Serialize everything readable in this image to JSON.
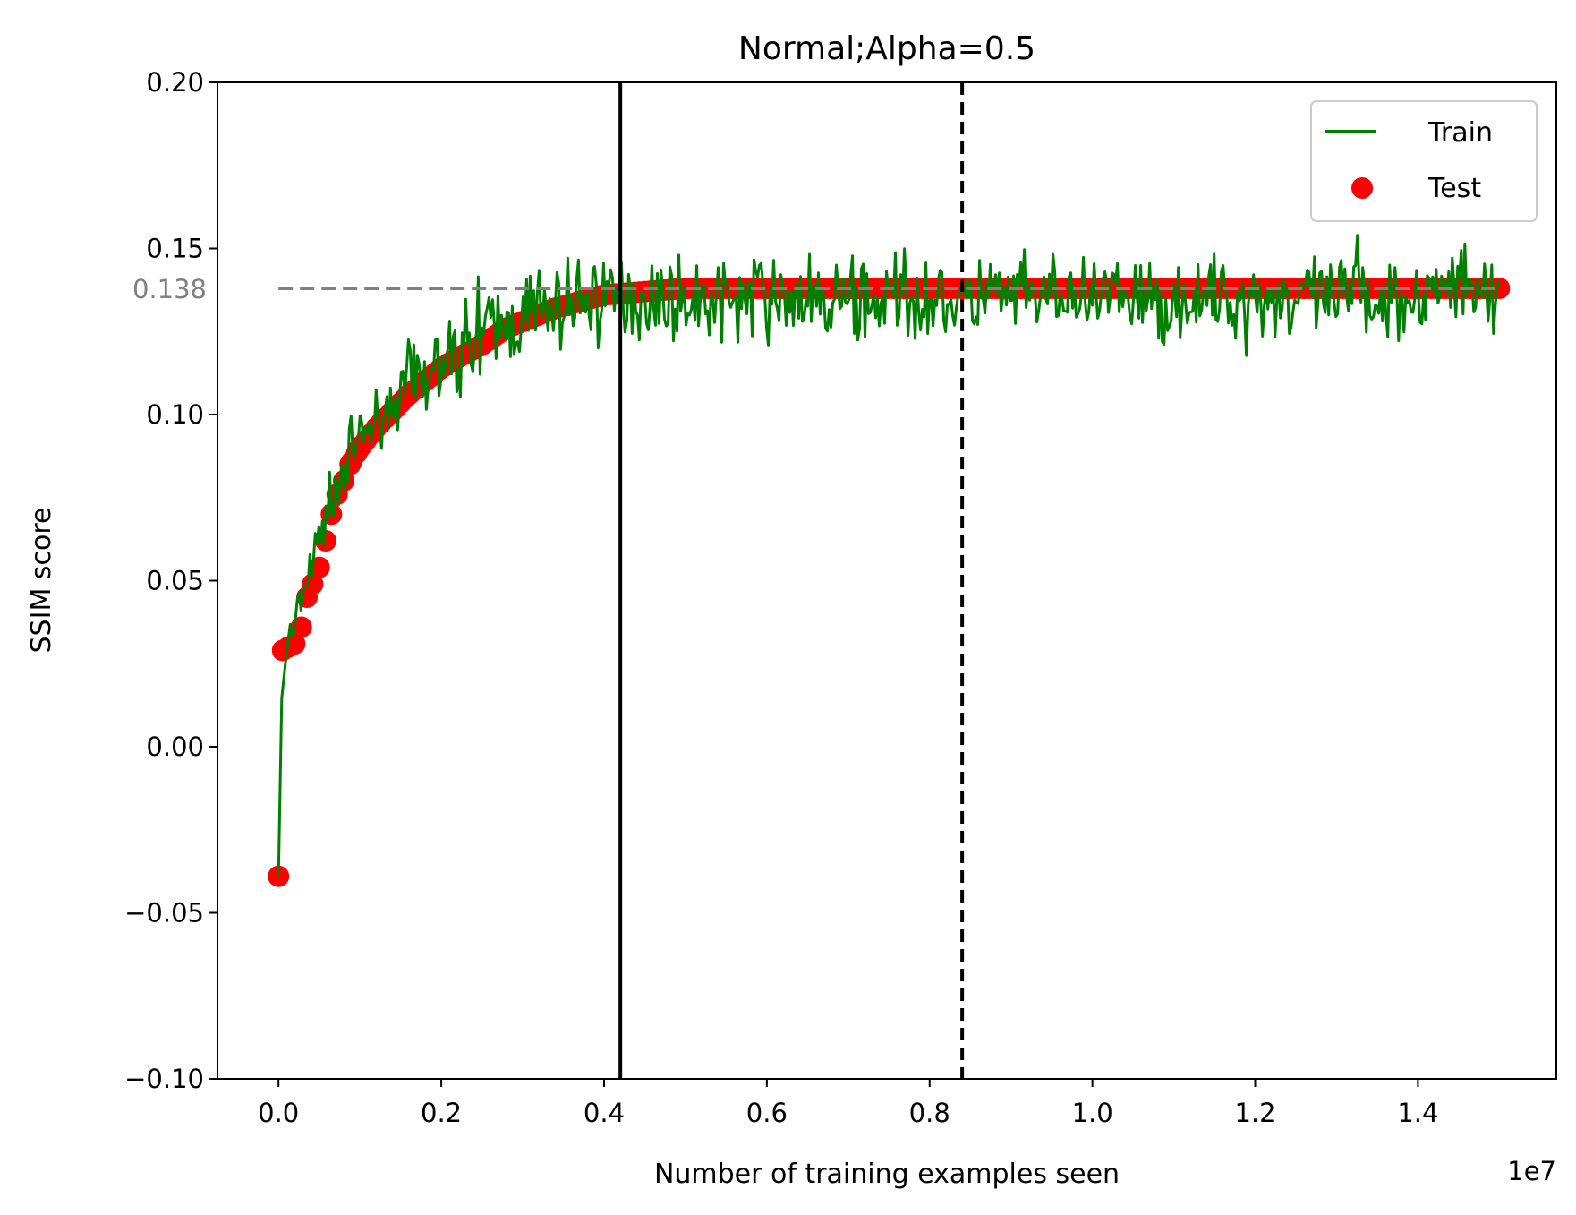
{
  "chart_data": {
    "type": "line",
    "title": "Normal;Alpha=0.5",
    "xlabel": "Number of training examples seen",
    "ylabel": "SSIM score",
    "x_offset_label": "1e7",
    "xlim": [
      -0.075,
      1.57
    ],
    "ylim": [
      -0.1,
      0.2
    ],
    "x_ticks": [
      0.0,
      0.2,
      0.4,
      0.6,
      0.8,
      1.0,
      1.2,
      1.4
    ],
    "x_tick_labels": [
      "0.0",
      "0.2",
      "0.4",
      "0.6",
      "0.8",
      "1.0",
      "1.2",
      "1.4"
    ],
    "y_ticks": [
      -0.1,
      -0.05,
      0.0,
      0.05,
      0.1,
      0.15,
      0.2
    ],
    "y_tick_labels": [
      "−0.10",
      "−0.05",
      "0.00",
      "0.05",
      "0.10",
      "0.15",
      "0.20"
    ],
    "grid": false,
    "legend_position": "top-right",
    "colors": {
      "train": "#008000",
      "test": "#ff0000",
      "reference": "#808080",
      "marker_lines": "#000000"
    },
    "reference_line": {
      "y": 0.138,
      "label": "0.138",
      "x_start": 0.0,
      "x_end": 1.5
    },
    "vertical_lines": [
      {
        "x": 0.42,
        "style": "solid"
      },
      {
        "x": 0.84,
        "style": "dashed"
      }
    ],
    "series": [
      {
        "name": "Train",
        "kind": "line",
        "x": [
          0.0,
          0.005,
          0.01,
          0.02,
          0.03,
          0.04,
          0.05,
          0.06,
          0.07,
          0.08,
          0.09,
          0.1,
          0.12,
          0.14,
          0.16,
          0.18,
          0.2,
          0.22,
          0.25,
          0.28,
          0.31,
          0.34,
          0.37,
          0.4,
          0.42,
          0.5,
          0.6,
          0.7,
          0.8,
          0.9,
          1.0,
          1.1,
          1.2,
          1.3,
          1.4,
          1.5
        ],
        "values": [
          -0.039,
          0.028,
          0.031,
          0.035,
          0.045,
          0.054,
          0.062,
          0.071,
          0.078,
          0.084,
          0.089,
          0.093,
          0.099,
          0.104,
          0.108,
          0.112,
          0.115,
          0.119,
          0.123,
          0.127,
          0.13,
          0.133,
          0.134,
          0.136,
          0.136,
          0.134,
          0.135,
          0.134,
          0.135,
          0.135,
          0.135,
          0.134,
          0.135,
          0.135,
          0.136,
          0.14
        ],
        "noise_amplitude": 0.006
      },
      {
        "name": "Test",
        "kind": "scatter",
        "x": [
          0.0,
          0.005,
          0.012,
          0.02,
          0.028,
          0.035,
          0.042,
          0.05,
          0.058,
          0.065,
          0.072,
          0.08,
          0.088,
          0.1,
          0.12,
          0.14,
          0.16,
          0.18,
          0.2,
          0.22,
          0.25,
          0.28,
          0.31,
          0.34,
          0.37,
          0.4,
          0.45,
          0.5,
          0.6,
          0.7,
          0.8,
          0.9,
          1.0,
          1.1,
          1.2,
          1.3,
          1.4,
          1.5
        ],
        "values": [
          -0.039,
          0.029,
          0.03,
          0.031,
          0.036,
          0.045,
          0.049,
          0.054,
          0.062,
          0.07,
          0.076,
          0.08,
          0.085,
          0.09,
          0.096,
          0.101,
          0.106,
          0.11,
          0.114,
          0.117,
          0.121,
          0.126,
          0.129,
          0.132,
          0.134,
          0.136,
          0.137,
          0.138,
          0.138,
          0.138,
          0.138,
          0.138,
          0.138,
          0.138,
          0.138,
          0.138,
          0.138,
          0.138
        ]
      }
    ]
  }
}
